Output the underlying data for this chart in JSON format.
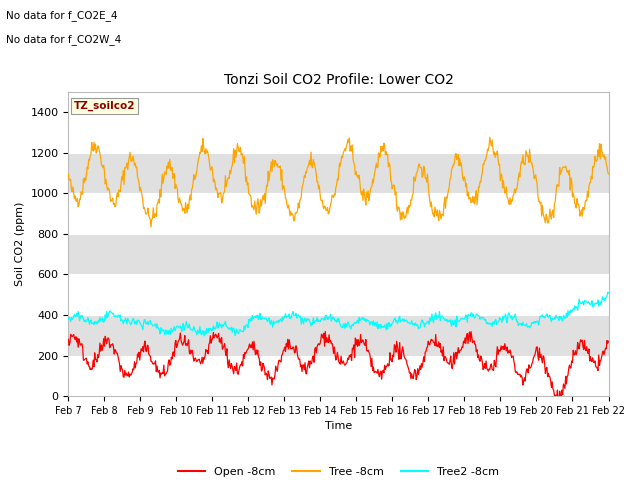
{
  "title": "Tonzi Soil CO2 Profile: Lower CO2",
  "xlabel": "Time",
  "ylabel": "Soil CO2 (ppm)",
  "ylim": [
    0,
    1500
  ],
  "yticks": [
    0,
    200,
    400,
    600,
    800,
    1000,
    1200,
    1400
  ],
  "note_line1": "No data for f_CO2E_4",
  "note_line2": "No data for f_CO2W_4",
  "legend_label": "TZ_soilco2",
  "line1_label": "Open -8cm",
  "line2_label": "Tree -8cm",
  "line3_label": "Tree2 -8cm",
  "line1_color": "#FF0000",
  "line2_color": "#FFA500",
  "line3_color": "#00FFFF",
  "bg_color": "#FFFFFF",
  "band_color": "#E0E0E0",
  "xtick_labels": [
    "Feb 7",
    "Feb 8",
    "Feb 9",
    "Feb 10",
    "Feb 11",
    "Feb 12",
    "Feb 13",
    "Feb 14",
    "Feb 15",
    "Feb 16",
    "Feb 17",
    "Feb 18",
    "Feb 19",
    "Feb 20",
    "Feb 21",
    "Feb 22"
  ],
  "n_days": 15,
  "pts_per_day": 48
}
